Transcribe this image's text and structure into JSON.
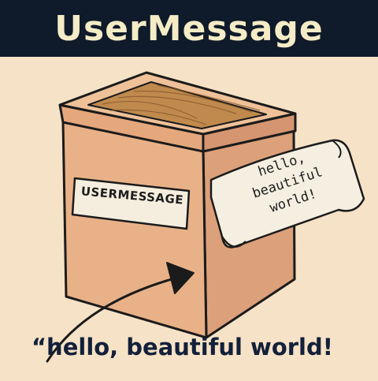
{
  "banner": {
    "title": "UserMessage"
  },
  "box": {
    "label": "USERMESSAGE"
  },
  "note": {
    "line1": "hello,",
    "line2": "beautiful",
    "line3": "world!"
  },
  "caption": {
    "text": "“hello, beautiful world!"
  },
  "colors": {
    "banner_bg": "#0f1a2a",
    "banner_text": "#f4ecc6",
    "background": "#f6e2c6",
    "box_front": "#e9b187",
    "box_side": "#dca07a",
    "lid_wood": "#c08a4e",
    "note_paper": "#f4efe0",
    "ink": "#1b1b1b"
  }
}
